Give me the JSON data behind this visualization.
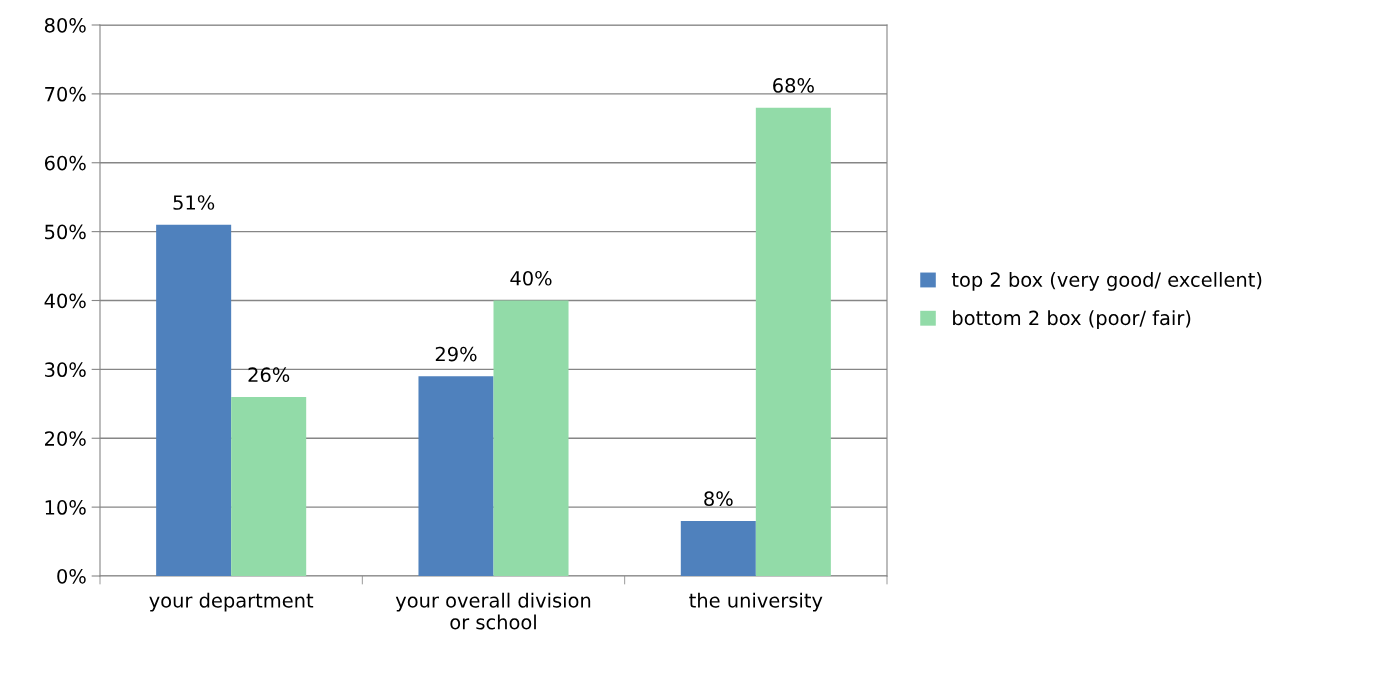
{
  "chart_data": {
    "type": "bar",
    "categories": [
      "your department",
      "your overall division\nor school",
      "the university"
    ],
    "series": [
      {
        "name": "top 2 box (very good/ excellent)",
        "color": "#4f81bd",
        "values": [
          51,
          29,
          8
        ],
        "value_labels": [
          "51%",
          "29%",
          "8%"
        ]
      },
      {
        "name": "bottom 2 box (poor/ fair)",
        "color": "#92dba8",
        "values": [
          26,
          40,
          68
        ],
        "value_labels": [
          "26%",
          "40%",
          "68%"
        ]
      }
    ],
    "ylim": [
      0,
      80
    ],
    "yticks": [
      {
        "value": 0,
        "label": "0%"
      },
      {
        "value": 10,
        "label": "10%"
      },
      {
        "value": 20,
        "label": "20%"
      },
      {
        "value": 30,
        "label": "30%"
      },
      {
        "value": 40,
        "label": "40%"
      },
      {
        "value": 50,
        "label": "50%"
      },
      {
        "value": 60,
        "label": "60%"
      },
      {
        "value": 70,
        "label": "70%"
      },
      {
        "value": 80,
        "label": "80%"
      }
    ],
    "grid": "y",
    "legend": "right"
  }
}
